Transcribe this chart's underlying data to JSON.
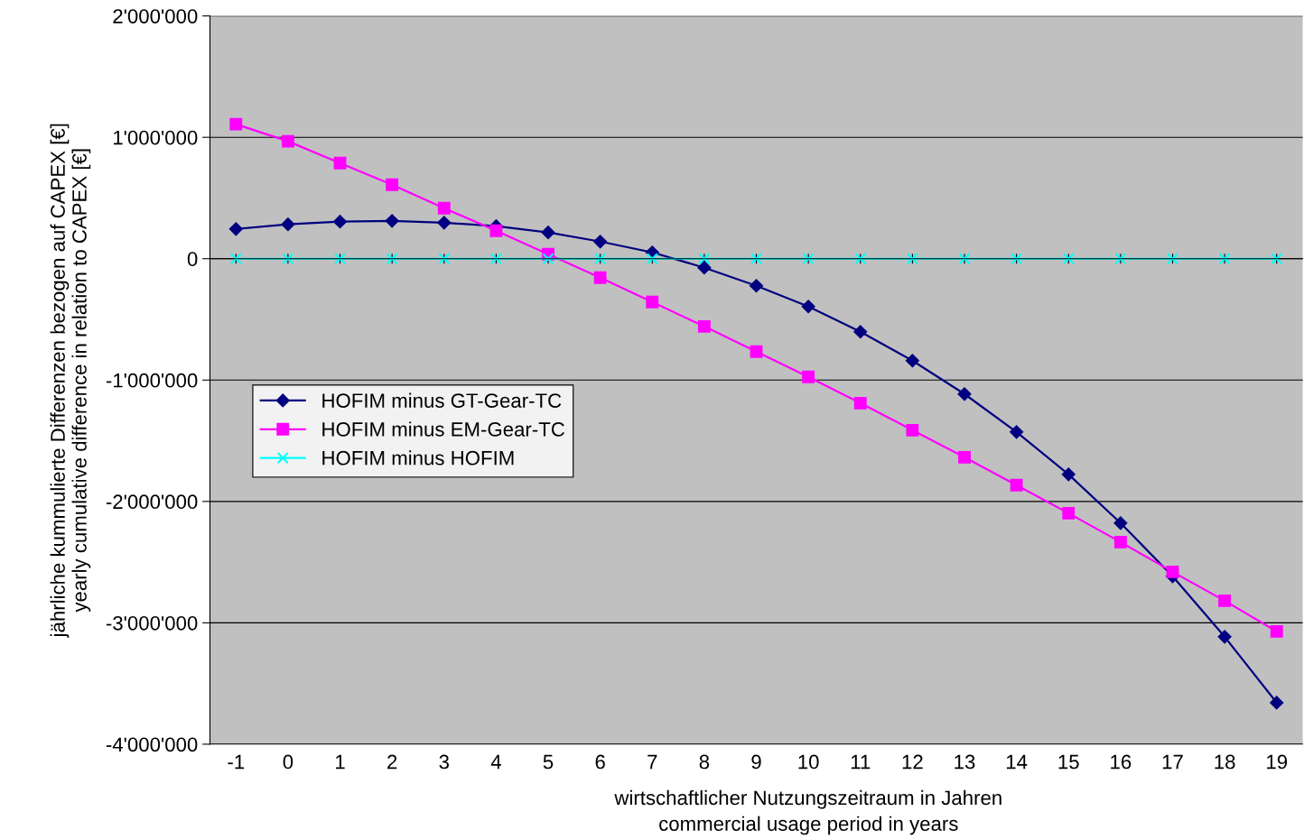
{
  "chart_data": {
    "type": "line",
    "xlabel": "wirtschaftlicher Nutzungszeitraum in Jahren\ncommercial usage period in years",
    "ylabel": "jährliche kummulierte Differenzen bezogen auf CAPEX [€]\nyearly cumulative difference in relation to CAPEX [€]",
    "categories": [
      "-1",
      "0",
      "1",
      "2",
      "3",
      "4",
      "5",
      "6",
      "7",
      "8",
      "9",
      "10",
      "11",
      "12",
      "13",
      "14",
      "15",
      "16",
      "17",
      "18",
      "19"
    ],
    "ylim": [
      -4000000,
      2000000
    ],
    "yticks": [
      {
        "value": -4000000,
        "label": "-4'000'000"
      },
      {
        "value": -3000000,
        "label": "-3'000'000"
      },
      {
        "value": -2000000,
        "label": "-2'000'000"
      },
      {
        "value": -1000000,
        "label": "-1'000'000"
      },
      0,
      {
        "value": 1000000,
        "label": "1'000'000"
      },
      {
        "value": 2000000,
        "label": "2'000'000"
      }
    ],
    "grid": "y",
    "legend": "center left",
    "series": [
      {
        "name": "HOFIM minus GT-Gear-TC",
        "color": "#000080",
        "marker": "diamond",
        "values": [
          245000,
          283000,
          305000,
          312000,
          297000,
          268000,
          216000,
          141000,
          52000,
          -74000,
          -223000,
          -394000,
          -602000,
          -840000,
          -1115000,
          -1428000,
          -1777000,
          -2178000,
          -2617000,
          -3115000,
          -3658000
        ]
      },
      {
        "name": "HOFIM minus EM-Gear-TC",
        "color": "#ff00ff",
        "marker": "square",
        "values": [
          1108000,
          967000,
          788000,
          610000,
          416000,
          230000,
          37000,
          -156000,
          -357000,
          -558000,
          -766000,
          -974000,
          -1190000,
          -1413000,
          -1636000,
          -1866000,
          -2097000,
          -2335000,
          -2580000,
          -2818000,
          -3071000
        ]
      },
      {
        "name": "HOFIM minus HOFIM",
        "color": "#00ffff",
        "marker": "cross",
        "values": [
          0,
          0,
          0,
          0,
          0,
          0,
          0,
          0,
          0,
          0,
          0,
          0,
          0,
          0,
          0,
          0,
          0,
          0,
          0,
          0,
          0
        ]
      }
    ]
  }
}
